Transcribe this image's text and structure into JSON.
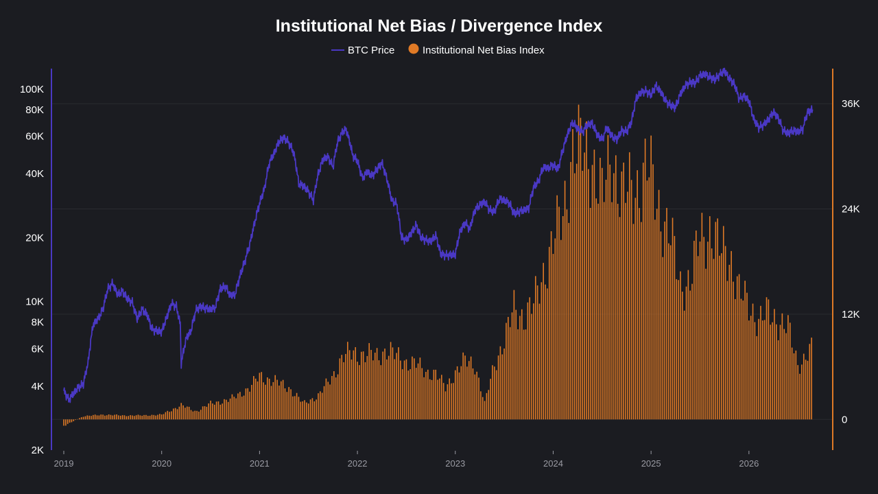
{
  "colors": {
    "background": "#1b1c21",
    "price_line": "#4a38c4",
    "bias_bars": "#e07a26",
    "grid": "#2a2b31",
    "text": "#ffffff",
    "axis_text": "#9a9ba3"
  },
  "chart_data": {
    "type": "bar+line",
    "title": "Institutional Net Bias / Divergence Index",
    "legend": [
      {
        "label": "BTC Price",
        "marker": "line"
      },
      {
        "label": "Institutional Net Bias Index",
        "marker": "dot"
      }
    ],
    "legend_position": "top-center",
    "x_axis": {
      "ticks": [
        "2019",
        "2020",
        "2021",
        "2022",
        "2023",
        "2024",
        "2025",
        "2026"
      ],
      "range": [
        2019.0,
        2026.8
      ]
    },
    "y_left": {
      "scale": "log",
      "ticks": [
        "2K",
        "4K",
        "6K",
        "8K",
        "10K",
        "20K",
        "40K",
        "60K",
        "80K",
        "100K"
      ],
      "range": [
        2000,
        125000
      ]
    },
    "y_right": {
      "scale": "linear",
      "ticks": [
        "0",
        "12K",
        "24K",
        "36K"
      ],
      "range": [
        -3500,
        40000
      ]
    },
    "grid": true,
    "series": [
      {
        "name": "BTC Price",
        "type": "line",
        "axis": "left",
        "points": [
          [
            2019.0,
            3800
          ],
          [
            2019.05,
            3450
          ],
          [
            2019.1,
            3700
          ],
          [
            2019.15,
            3950
          ],
          [
            2019.2,
            4100
          ],
          [
            2019.25,
            5200
          ],
          [
            2019.3,
            7800
          ],
          [
            2019.35,
            8300
          ],
          [
            2019.4,
            9200
          ],
          [
            2019.45,
            11500
          ],
          [
            2019.5,
            12200
          ],
          [
            2019.55,
            10800
          ],
          [
            2019.6,
            11200
          ],
          [
            2019.65,
            10300
          ],
          [
            2019.7,
            9900
          ],
          [
            2019.75,
            8300
          ],
          [
            2019.8,
            9200
          ],
          [
            2019.85,
            8700
          ],
          [
            2019.9,
            7400
          ],
          [
            2019.95,
            7300
          ],
          [
            2020.0,
            7200
          ],
          [
            2020.05,
            8400
          ],
          [
            2020.1,
            9800
          ],
          [
            2020.15,
            9500
          ],
          [
            2020.19,
            7800
          ],
          [
            2020.2,
            5100
          ],
          [
            2020.25,
            6700
          ],
          [
            2020.3,
            7300
          ],
          [
            2020.35,
            9100
          ],
          [
            2020.4,
            9500
          ],
          [
            2020.45,
            9300
          ],
          [
            2020.5,
            9200
          ],
          [
            2020.55,
            9400
          ],
          [
            2020.6,
            11500
          ],
          [
            2020.65,
            11800
          ],
          [
            2020.7,
            10700
          ],
          [
            2020.75,
            10800
          ],
          [
            2020.8,
            13200
          ],
          [
            2020.85,
            15500
          ],
          [
            2020.9,
            18500
          ],
          [
            2020.95,
            23500
          ],
          [
            2021.0,
            29000
          ],
          [
            2021.05,
            34000
          ],
          [
            2021.1,
            45000
          ],
          [
            2021.15,
            50000
          ],
          [
            2021.2,
            57000
          ],
          [
            2021.25,
            59000
          ],
          [
            2021.3,
            56000
          ],
          [
            2021.35,
            50000
          ],
          [
            2021.4,
            36000
          ],
          [
            2021.45,
            35000
          ],
          [
            2021.5,
            33000
          ],
          [
            2021.55,
            30000
          ],
          [
            2021.6,
            40000
          ],
          [
            2021.65,
            47000
          ],
          [
            2021.7,
            48000
          ],
          [
            2021.75,
            43000
          ],
          [
            2021.8,
            57000
          ],
          [
            2021.85,
            63000
          ],
          [
            2021.88,
            65000
          ],
          [
            2021.92,
            57000
          ],
          [
            2021.95,
            49000
          ],
          [
            2022.0,
            46000
          ],
          [
            2022.05,
            38000
          ],
          [
            2022.1,
            41000
          ],
          [
            2022.15,
            39000
          ],
          [
            2022.2,
            42000
          ],
          [
            2022.25,
            45000
          ],
          [
            2022.3,
            38000
          ],
          [
            2022.35,
            30000
          ],
          [
            2022.4,
            29000
          ],
          [
            2022.45,
            20000
          ],
          [
            2022.5,
            19500
          ],
          [
            2022.55,
            21000
          ],
          [
            2022.6,
            23000
          ],
          [
            2022.65,
            20000
          ],
          [
            2022.7,
            19500
          ],
          [
            2022.75,
            19200
          ],
          [
            2022.8,
            20500
          ],
          [
            2022.85,
            16800
          ],
          [
            2022.9,
            16500
          ],
          [
            2022.95,
            16600
          ],
          [
            2023.0,
            16700
          ],
          [
            2023.05,
            21500
          ],
          [
            2023.1,
            23500
          ],
          [
            2023.15,
            22000
          ],
          [
            2023.2,
            27000
          ],
          [
            2023.25,
            28500
          ],
          [
            2023.3,
            29500
          ],
          [
            2023.35,
            27000
          ],
          [
            2023.4,
            26500
          ],
          [
            2023.45,
            30500
          ],
          [
            2023.5,
            30000
          ],
          [
            2023.55,
            29200
          ],
          [
            2023.6,
            26000
          ],
          [
            2023.65,
            26500
          ],
          [
            2023.7,
            27000
          ],
          [
            2023.75,
            27500
          ],
          [
            2023.8,
            34500
          ],
          [
            2023.85,
            37000
          ],
          [
            2023.9,
            43000
          ],
          [
            2023.95,
            42500
          ],
          [
            2024.0,
            44000
          ],
          [
            2024.05,
            42000
          ],
          [
            2024.1,
            52000
          ],
          [
            2024.15,
            62000
          ],
          [
            2024.2,
            70000
          ],
          [
            2024.25,
            65000
          ],
          [
            2024.3,
            63000
          ],
          [
            2024.35,
            68000
          ],
          [
            2024.4,
            69000
          ],
          [
            2024.45,
            61000
          ],
          [
            2024.5,
            58000
          ],
          [
            2024.55,
            66000
          ],
          [
            2024.6,
            60000
          ],
          [
            2024.65,
            58000
          ],
          [
            2024.7,
            64000
          ],
          [
            2024.75,
            63000
          ],
          [
            2024.8,
            70000
          ],
          [
            2024.85,
            91000
          ],
          [
            2024.9,
            97000
          ],
          [
            2024.95,
            98000
          ],
          [
            2025.0,
            94000
          ],
          [
            2025.05,
            104000
          ],
          [
            2025.1,
            97000
          ],
          [
            2025.15,
            88000
          ],
          [
            2025.2,
            84000
          ],
          [
            2025.25,
            82000
          ],
          [
            2025.3,
            95000
          ],
          [
            2025.35,
            104000
          ],
          [
            2025.4,
            108000
          ],
          [
            2025.45,
            107000
          ],
          [
            2025.5,
            116000
          ],
          [
            2025.55,
            118000
          ],
          [
            2025.6,
            114000
          ],
          [
            2025.65,
            111000
          ],
          [
            2025.7,
            117000
          ],
          [
            2025.75,
            122000
          ],
          [
            2025.8,
            112000
          ],
          [
            2025.85,
            106000
          ],
          [
            2025.9,
            90000
          ],
          [
            2025.95,
            93000
          ],
          [
            2026.0,
            88000
          ],
          [
            2026.05,
            72000
          ],
          [
            2026.1,
            66000
          ],
          [
            2026.15,
            68000
          ],
          [
            2026.2,
            72000
          ],
          [
            2026.25,
            78000
          ],
          [
            2026.3,
            73000
          ],
          [
            2026.35,
            64000
          ],
          [
            2026.4,
            62000
          ],
          [
            2026.45,
            64000
          ],
          [
            2026.5,
            63000
          ],
          [
            2026.55,
            65000
          ],
          [
            2026.6,
            78000
          ],
          [
            2026.65,
            80000
          ]
        ]
      },
      {
        "name": "Institutional Net Bias Index",
        "type": "bar",
        "axis": "right",
        "points": [
          [
            2019.0,
            -800
          ],
          [
            2019.2,
            400
          ],
          [
            2019.4,
            600
          ],
          [
            2019.6,
            500
          ],
          [
            2019.8,
            500
          ],
          [
            2020.0,
            600
          ],
          [
            2020.2,
            1800
          ],
          [
            2020.35,
            1000
          ],
          [
            2020.5,
            2000
          ],
          [
            2020.7,
            2500
          ],
          [
            2020.9,
            4000
          ],
          [
            2021.0,
            5500
          ],
          [
            2021.2,
            4600
          ],
          [
            2021.3,
            4000
          ],
          [
            2021.45,
            2000
          ],
          [
            2021.6,
            3000
          ],
          [
            2021.75,
            5500
          ],
          [
            2021.85,
            8000
          ],
          [
            2021.95,
            8400
          ],
          [
            2022.1,
            8200
          ],
          [
            2022.2,
            8000
          ],
          [
            2022.3,
            8800
          ],
          [
            2022.4,
            8000
          ],
          [
            2022.5,
            7300
          ],
          [
            2022.6,
            7000
          ],
          [
            2022.7,
            6000
          ],
          [
            2022.8,
            5800
          ],
          [
            2022.9,
            4000
          ],
          [
            2023.0,
            6000
          ],
          [
            2023.1,
            7400
          ],
          [
            2023.2,
            7000
          ],
          [
            2023.3,
            2000
          ],
          [
            2023.4,
            7000
          ],
          [
            2023.5,
            10000
          ],
          [
            2023.6,
            14000
          ],
          [
            2023.7,
            13000
          ],
          [
            2023.8,
            14500
          ],
          [
            2023.9,
            18500
          ],
          [
            2024.0,
            22500
          ],
          [
            2024.1,
            26000
          ],
          [
            2024.2,
            34000
          ],
          [
            2024.3,
            34000
          ],
          [
            2024.4,
            33000
          ],
          [
            2024.5,
            28000
          ],
          [
            2024.6,
            33500
          ],
          [
            2024.7,
            28500
          ],
          [
            2024.8,
            29000
          ],
          [
            2024.9,
            30000
          ],
          [
            2024.95,
            32000
          ],
          [
            2025.0,
            30500
          ],
          [
            2025.1,
            26000
          ],
          [
            2025.2,
            23000
          ],
          [
            2025.3,
            17000
          ],
          [
            2025.4,
            17500
          ],
          [
            2025.5,
            23000
          ],
          [
            2025.6,
            24000
          ],
          [
            2025.7,
            21500
          ],
          [
            2025.8,
            21000
          ],
          [
            2025.9,
            16000
          ],
          [
            2026.0,
            14500
          ],
          [
            2026.1,
            12500
          ],
          [
            2026.2,
            13500
          ],
          [
            2026.3,
            12500
          ],
          [
            2026.4,
            11500
          ],
          [
            2026.5,
            7000
          ],
          [
            2026.55,
            7500
          ],
          [
            2026.65,
            9000
          ]
        ]
      }
    ]
  }
}
